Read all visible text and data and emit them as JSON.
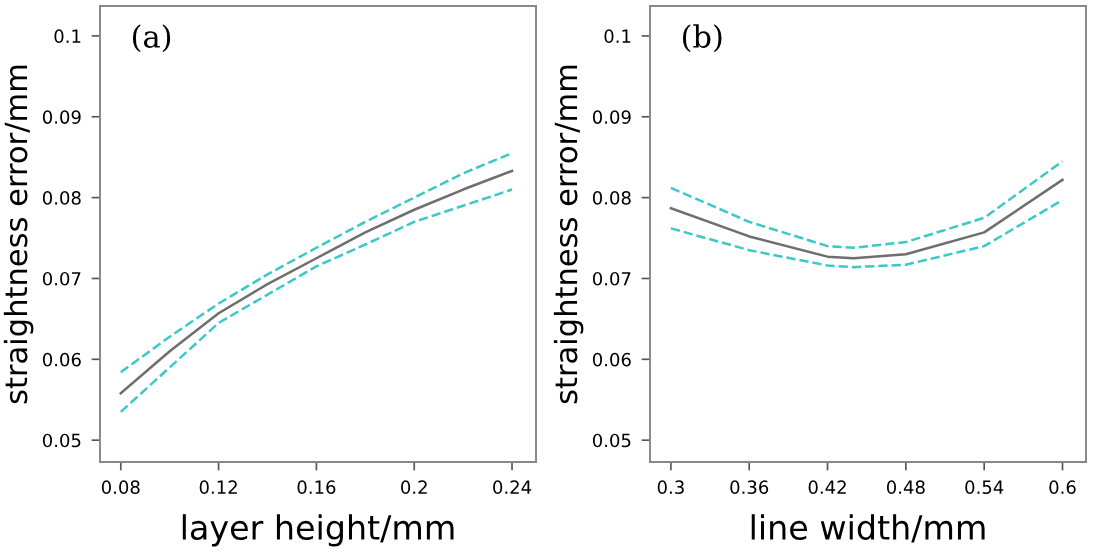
{
  "chart_data": [
    {
      "type": "line",
      "xlabel": "layer height/mm",
      "ylabel": "straightness error/mm",
      "annotations": [
        "(a)"
      ],
      "x": [
        0.08,
        0.1,
        0.12,
        0.14,
        0.16,
        0.18,
        0.2,
        0.22,
        0.24
      ],
      "series": [
        {
          "color": "#6e6e6e",
          "line_style": "solid",
          "values": [
            0.0558,
            0.061,
            0.0657,
            0.0693,
            0.0725,
            0.0757,
            0.0785,
            0.081,
            0.0833
          ]
        },
        {
          "color": "#3cc8c8",
          "line_style": "dashed",
          "values": [
            0.0584,
            0.0628,
            0.0669,
            0.0705,
            0.0738,
            0.077,
            0.08,
            0.083,
            0.0855
          ]
        },
        {
          "color": "#3cc8c8",
          "line_style": "dashed",
          "values": [
            0.0535,
            0.059,
            0.0645,
            0.068,
            0.0715,
            0.0742,
            0.077,
            0.079,
            0.081
          ]
        }
      ],
      "xlim": [
        0.0715,
        0.2498
      ],
      "ylim": [
        0.0473,
        0.1037
      ],
      "xticks": [
        0.08,
        0.12,
        0.16,
        0.2,
        0.24
      ],
      "yticks": [
        0.05,
        0.06,
        0.07,
        0.08,
        0.09,
        0.1
      ],
      "grid": false
    },
    {
      "type": "line",
      "xlabel": "line width/mm",
      "ylabel": "straightness error/mm",
      "annotations": [
        "(b)"
      ],
      "x": [
        0.3,
        0.36,
        0.42,
        0.44,
        0.48,
        0.54,
        0.6
      ],
      "series": [
        {
          "color": "#6e6e6e",
          "line_style": "solid",
          "values": [
            0.0787,
            0.0752,
            0.0727,
            0.0725,
            0.073,
            0.0757,
            0.0822
          ]
        },
        {
          "color": "#3cc8c8",
          "line_style": "dashed",
          "values": [
            0.0812,
            0.077,
            0.074,
            0.0738,
            0.0745,
            0.0775,
            0.0845
          ]
        },
        {
          "color": "#3cc8c8",
          "line_style": "dashed",
          "values": [
            0.0762,
            0.0735,
            0.0716,
            0.0714,
            0.0717,
            0.074,
            0.0797
          ]
        }
      ],
      "xlim": [
        0.284,
        0.618
      ],
      "ylim": [
        0.0473,
        0.1037
      ],
      "xticks": [
        0.3,
        0.36,
        0.42,
        0.48,
        0.54,
        0.6
      ],
      "yticks": [
        0.05,
        0.06,
        0.07,
        0.08,
        0.09,
        0.1
      ],
      "grid": false
    }
  ]
}
